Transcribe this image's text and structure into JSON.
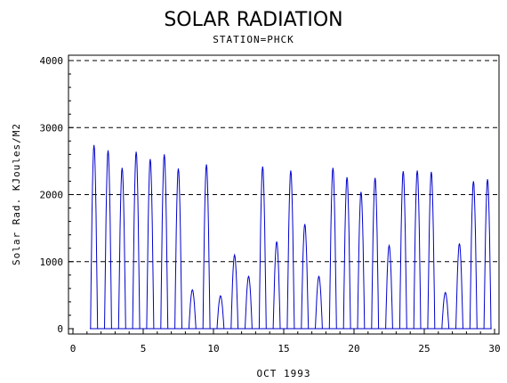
{
  "chart_data": {
    "type": "line",
    "title": "SOLAR RADIATION",
    "subtitle": "STATION=PHCK",
    "xlabel": "OCT 1993",
    "ylabel": "Solar Rad. KJoules/M2",
    "xlim": [
      0,
      30
    ],
    "ylim": [
      0,
      4000
    ],
    "x_ticks": [
      0,
      5,
      10,
      15,
      20,
      25,
      30
    ],
    "y_ticks": [
      0,
      1000,
      2000,
      3000,
      4000
    ],
    "x_tick_labels": [
      "0",
      "5",
      "10",
      "15",
      "20",
      "25",
      "30"
    ],
    "y_tick_labels": [
      "0",
      "1000",
      "2000",
      "3000",
      "4000"
    ],
    "grid": "horizontal dashed",
    "line_color": "#0000cc",
    "series": [
      {
        "daily_peaks": [
          {
            "day": 1,
            "peak": 2740
          },
          {
            "day": 2,
            "peak": 2660
          },
          {
            "day": 3,
            "peak": 2400
          },
          {
            "day": 4,
            "peak": 2640
          },
          {
            "day": 5,
            "peak": 2530
          },
          {
            "day": 6,
            "peak": 2600
          },
          {
            "day": 7,
            "peak": 2390
          },
          {
            "day": 8,
            "peak": 580
          },
          {
            "day": 9,
            "peak": 2450
          },
          {
            "day": 10,
            "peak": 490
          },
          {
            "day": 11,
            "peak": 1100
          },
          {
            "day": 12,
            "peak": 780
          },
          {
            "day": 13,
            "peak": 2420
          },
          {
            "day": 14,
            "peak": 1300
          },
          {
            "day": 15,
            "peak": 2360
          },
          {
            "day": 16,
            "peak": 1560
          },
          {
            "day": 17,
            "peak": 780
          },
          {
            "day": 18,
            "peak": 2400
          },
          {
            "day": 19,
            "peak": 2260
          },
          {
            "day": 20,
            "peak": 2040
          },
          {
            "day": 21,
            "peak": 2250
          },
          {
            "day": 22,
            "peak": 1240
          },
          {
            "day": 23,
            "peak": 2350
          },
          {
            "day": 24,
            "peak": 2360
          },
          {
            "day": 25,
            "peak": 2340
          },
          {
            "day": 26,
            "peak": 540
          },
          {
            "day": 27,
            "peak": 1270
          },
          {
            "day": 28,
            "peak": 2200
          },
          {
            "day": 29,
            "peak": 2230
          }
        ]
      }
    ]
  }
}
